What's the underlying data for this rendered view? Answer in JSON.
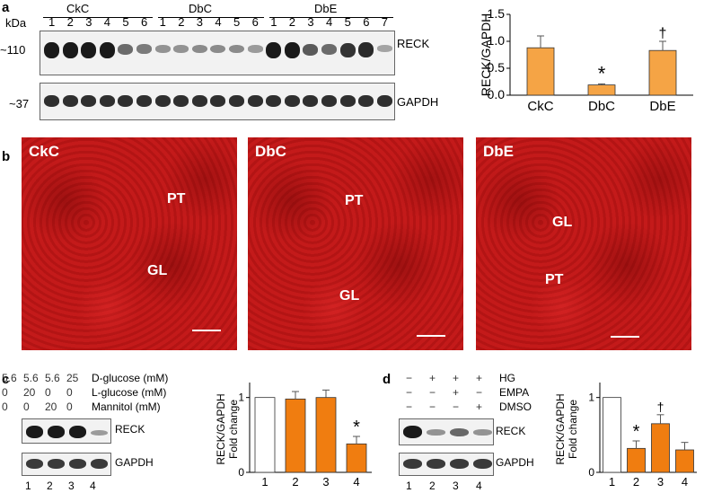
{
  "panel_a": {
    "letter": "a",
    "unit_label": "kDa",
    "group_labels": [
      "CkC",
      "DbC",
      "DbE"
    ],
    "lane_numbers": [
      "1",
      "2",
      "3",
      "4",
      "5",
      "6",
      "1",
      "2",
      "3",
      "4",
      "5",
      "6",
      "1",
      "2",
      "3",
      "4",
      "5",
      "6",
      "7"
    ],
    "marker_top": "~110",
    "marker_bottom": "~37",
    "blot_top_label": "RECK",
    "blot_bottom_label": "GAPDH"
  },
  "panel_b": {
    "letter": "b",
    "images": [
      {
        "title": "CkC",
        "labels": [
          "PT",
          "GL"
        ]
      },
      {
        "title": "DbC",
        "labels": [
          "PT",
          "GL"
        ]
      },
      {
        "title": "DbE",
        "labels": [
          "GL",
          "PT"
        ]
      }
    ]
  },
  "panel_c": {
    "letter": "c",
    "conditions": [
      {
        "values": [
          "5.6",
          "5.6",
          "5.6",
          "25"
        ],
        "label": "D-glucose (mM)"
      },
      {
        "values": [
          "0",
          "20",
          "0",
          "0"
        ],
        "label": "L-glucose (mM)"
      },
      {
        "values": [
          "0",
          "0",
          "20",
          "0"
        ],
        "label": "Mannitol (mM)"
      }
    ],
    "blot_labels": [
      "RECK",
      "GAPDH"
    ],
    "lane_numbers": [
      "1",
      "2",
      "3",
      "4"
    ]
  },
  "panel_d": {
    "letter": "d",
    "conditions": [
      {
        "values": [
          "−",
          "+",
          "+",
          "+"
        ],
        "label": "HG"
      },
      {
        "values": [
          "−",
          "−",
          "+",
          "−"
        ],
        "label": "EMPA"
      },
      {
        "values": [
          "−",
          "−",
          "−",
          "+"
        ],
        "label": "DMSO"
      }
    ],
    "blot_labels": [
      "RECK",
      "GAPDH"
    ],
    "lane_numbers": [
      "1",
      "2",
      "3",
      "4"
    ]
  },
  "colors": {
    "bar_fill": "#f5a445",
    "bar_fill_dark": "#f07d10",
    "stain": "#c01818"
  },
  "chart_data": [
    {
      "type": "bar",
      "id": "a",
      "categories": [
        "CkC",
        "DbC",
        "DbE"
      ],
      "values": [
        0.88,
        0.19,
        0.83
      ],
      "errors": [
        0.22,
        0.02,
        0.17
      ],
      "annotations": [
        "",
        "*",
        "†"
      ],
      "ylabel": "RECK/GAPDH",
      "ylim": [
        0,
        1.5
      ],
      "yticks": [
        "0.0",
        "0.5",
        "1.0",
        "1.5"
      ]
    },
    {
      "type": "bar",
      "id": "c",
      "categories": [
        "1",
        "2",
        "3",
        "4"
      ],
      "values": [
        1.0,
        0.98,
        1.0,
        0.38
      ],
      "errors": [
        0.0,
        0.1,
        0.1,
        0.1
      ],
      "annotations": [
        "",
        "",
        "",
        "*"
      ],
      "ylabel": "RECK/GAPDH Fold change",
      "ylim": [
        0,
        1.2
      ],
      "yticks": [
        "0",
        "1"
      ]
    },
    {
      "type": "bar",
      "id": "d",
      "categories": [
        "1",
        "2",
        "3",
        "4"
      ],
      "values": [
        1.0,
        0.32,
        0.65,
        0.3
      ],
      "errors": [
        0.0,
        0.1,
        0.12,
        0.1
      ],
      "annotations": [
        "",
        "*",
        "†",
        ""
      ],
      "ylabel": "RECK/GAPDH Fold change",
      "ylim": [
        0,
        1.2
      ],
      "yticks": [
        "0",
        "1"
      ]
    }
  ]
}
